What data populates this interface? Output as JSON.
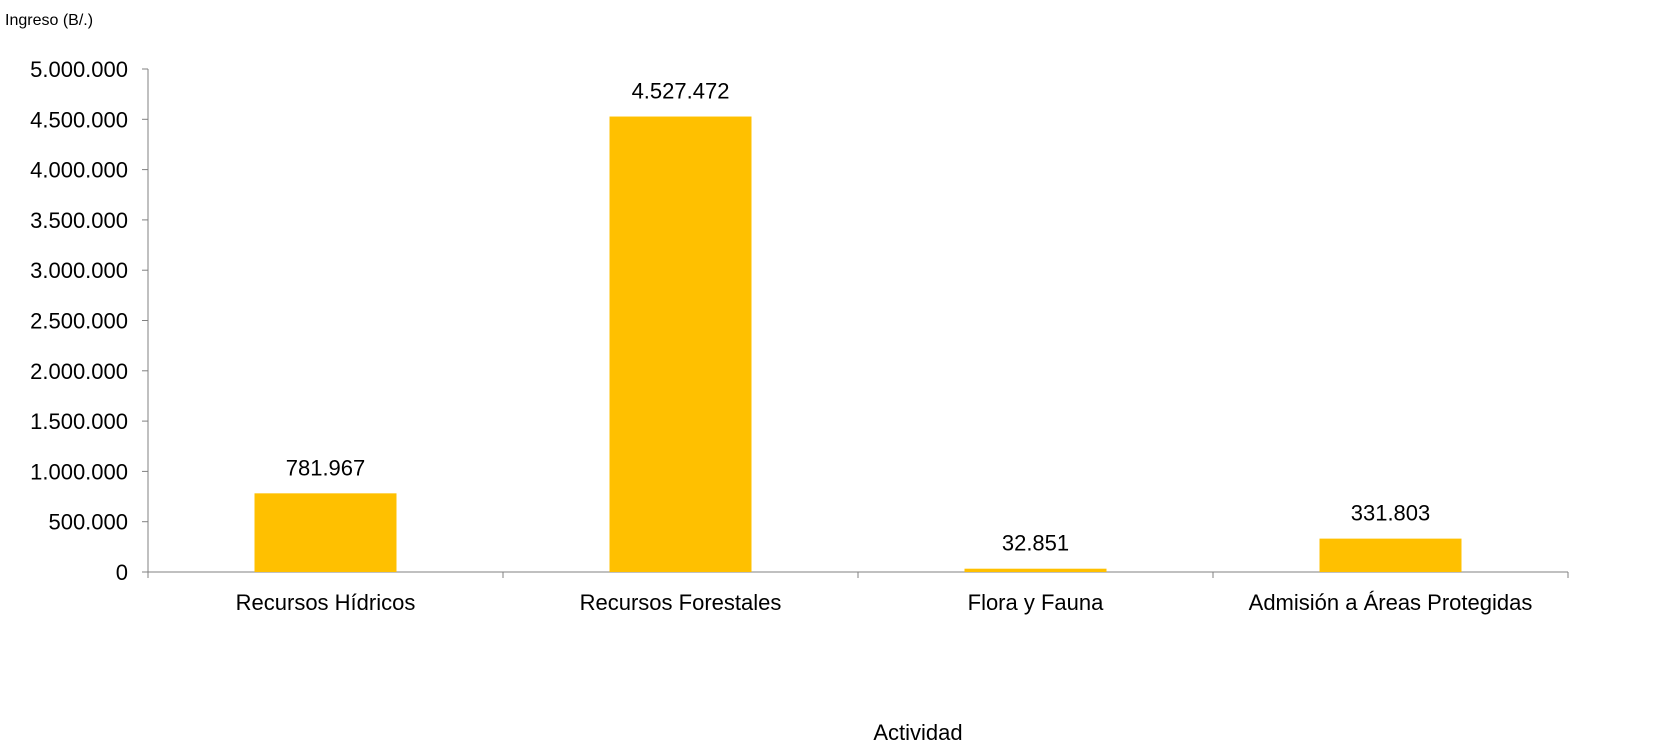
{
  "chart_data": {
    "type": "bar",
    "ylabel": "Ingreso (B/.)",
    "xlabel": "Actividad",
    "categories": [
      "Recursos Hídricos",
      "Recursos Forestales",
      "Flora y Fauna",
      "Admisión a Áreas Protegidas"
    ],
    "values": [
      781967,
      4527472,
      32851,
      331803
    ],
    "data_labels": [
      "781.967",
      "4.527.472",
      "32.851",
      "331.803"
    ],
    "ylim": [
      0,
      5000000
    ],
    "yticks": [
      0,
      500000,
      1000000,
      1500000,
      2000000,
      2500000,
      3000000,
      3500000,
      4000000,
      4500000,
      5000000
    ],
    "ytick_labels": [
      "0",
      "500.000",
      "1.000.000",
      "1.500.000",
      "2.000.000",
      "2.500.000",
      "3.000.000",
      "3.500.000",
      "4.000.000",
      "4.500.000",
      "5.000.000"
    ],
    "grid": false,
    "legend": "none",
    "bar_color": "#FFC000",
    "axis_color": "#808080"
  }
}
